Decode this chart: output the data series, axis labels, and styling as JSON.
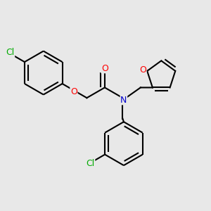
{
  "bg_color": "#e8e8e8",
  "bond_color": "#000000",
  "atom_colors": {
    "O": "#ff0000",
    "N": "#0000cc",
    "Cl": "#00aa00"
  },
  "bond_width": 1.5,
  "font_size": 9,
  "figsize": [
    3.0,
    3.0
  ],
  "dpi": 100,
  "xlim": [
    0.02,
    0.98
  ],
  "ylim": [
    0.05,
    0.98
  ]
}
